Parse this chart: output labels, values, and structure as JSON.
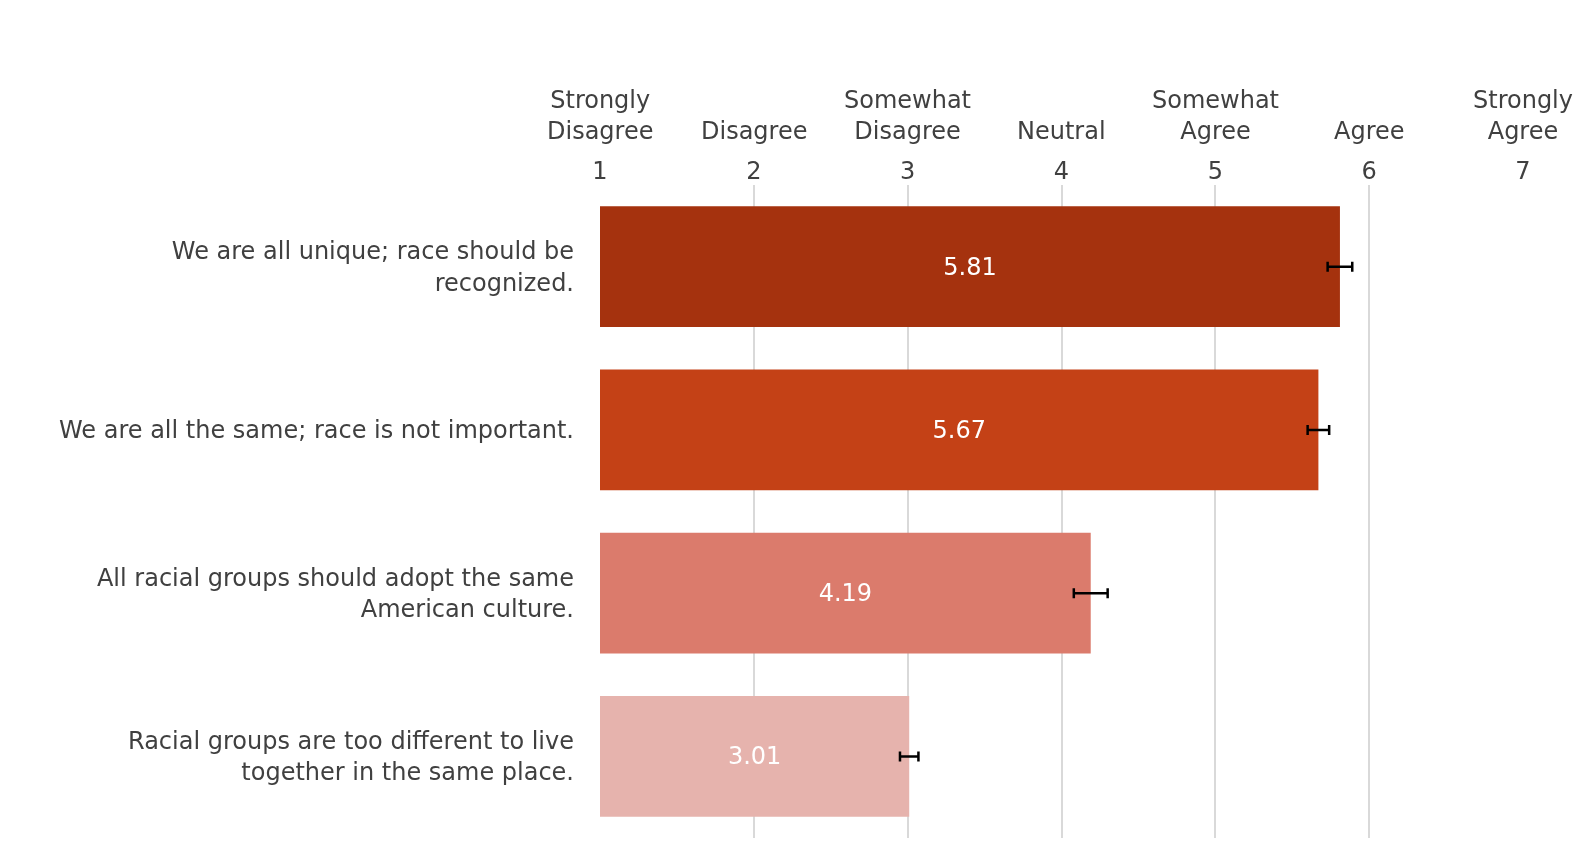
{
  "chart_data": {
    "type": "bar",
    "orientation": "horizontal",
    "categories": [
      "We are all unique; race should be recognized.",
      "We are all the same; race is not important.",
      "All racial groups should adopt the same American culture.",
      "Racial groups are too different to live together in the same place."
    ],
    "values": [
      5.81,
      5.67,
      4.19,
      3.01
    ],
    "colors": [
      "#a5320e",
      "#c44116",
      "#db7b6c",
      "#e6b3ad"
    ],
    "errors": [
      0.08,
      0.07,
      0.11,
      0.06
    ],
    "data_labels": true,
    "xlim": [
      1,
      7
    ],
    "xticks": [
      1,
      2,
      3,
      4,
      5,
      6,
      7
    ],
    "annotations": [
      "Strongly\nDisagree",
      "Disagree",
      "Somewhat\nDisagree",
      "Neutral",
      "Somewhat\nAgree",
      "Agree",
      "Strongly\nAgree"
    ],
    "grid": "x"
  }
}
